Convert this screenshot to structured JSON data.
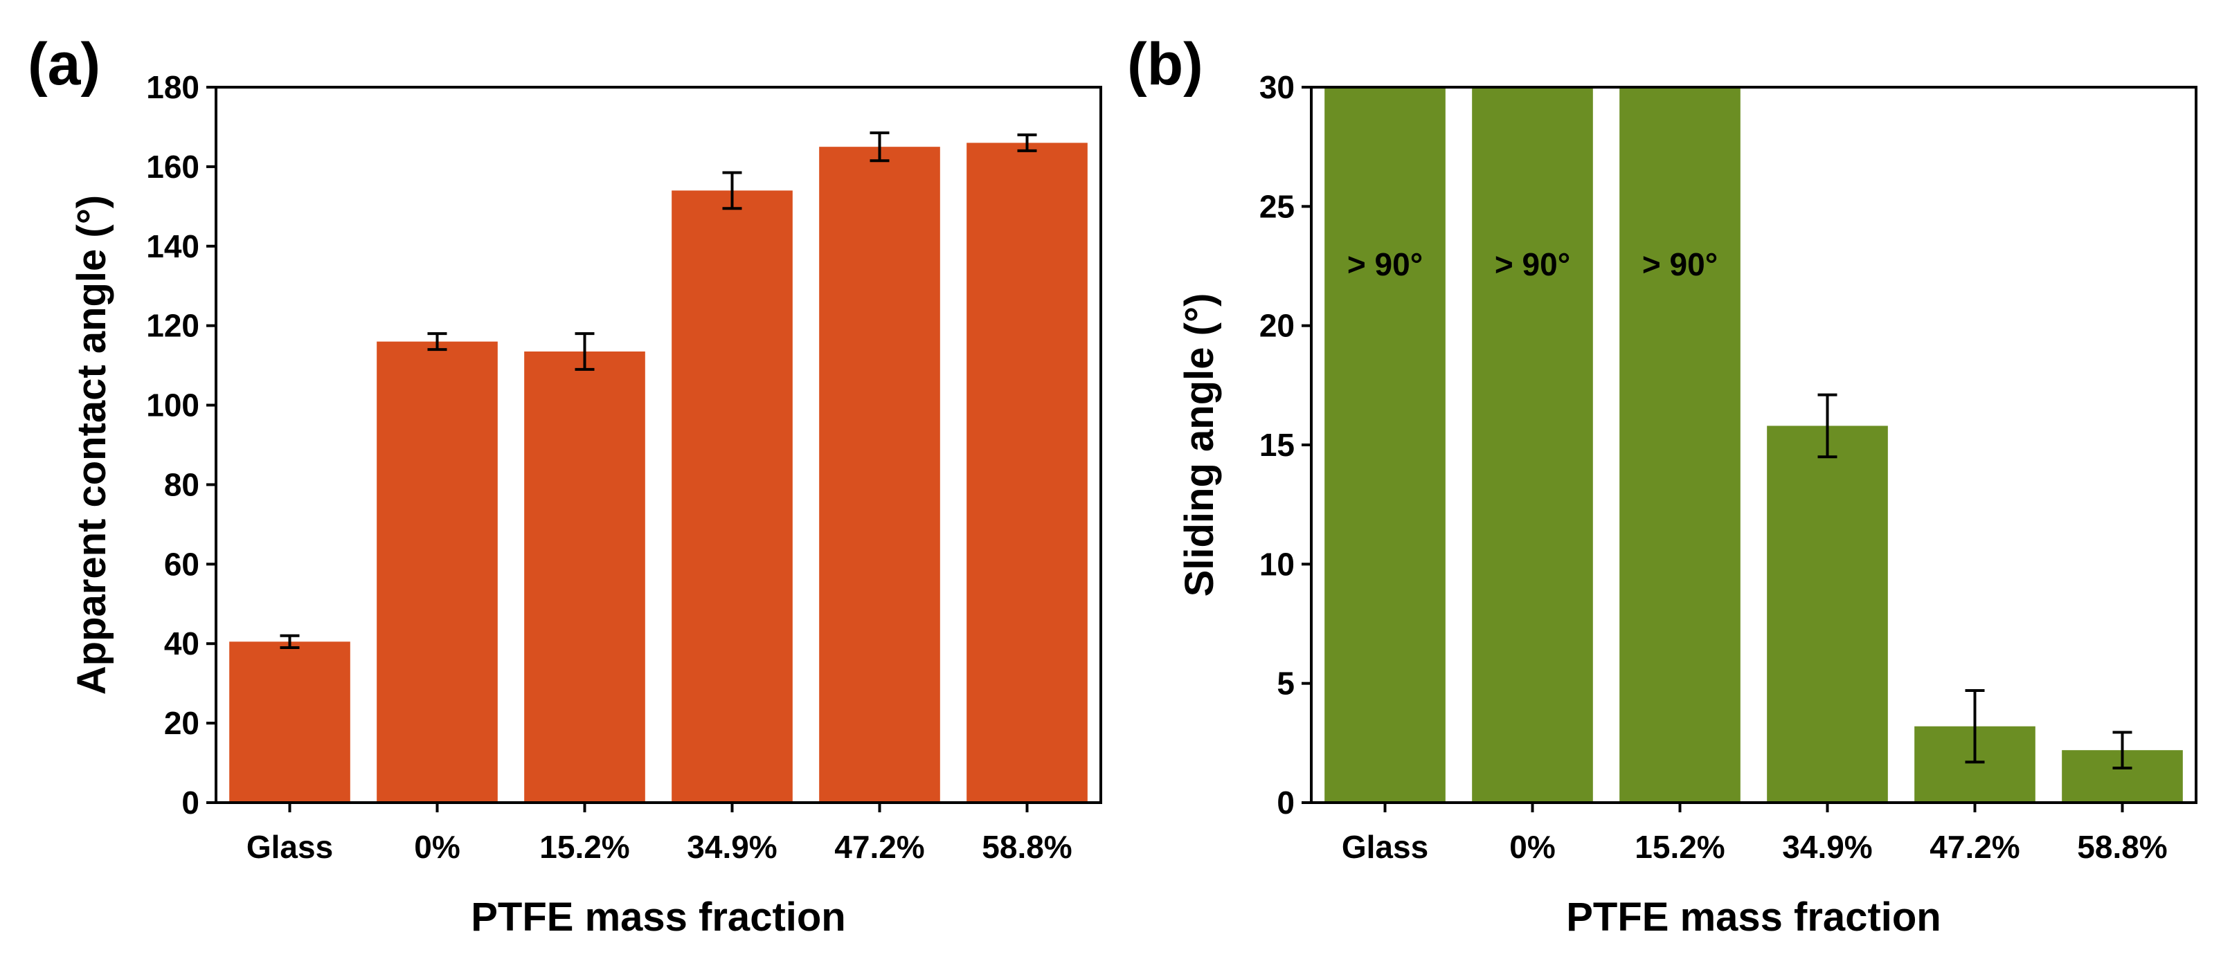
{
  "chart_data": [
    {
      "panel": "(a)",
      "type": "bar",
      "xlabel": "PTFE mass fraction",
      "ylabel": "Apparent contact angle (°)",
      "categories": [
        "Glass",
        "0%",
        "15.2%",
        "34.9%",
        "47.2%",
        "58.8%"
      ],
      "values": [
        40.5,
        116,
        113.5,
        154,
        165,
        166
      ],
      "errors": [
        1.5,
        2,
        4.5,
        4.5,
        3.5,
        2
      ],
      "ylim": [
        0,
        180
      ],
      "yticks": [
        0,
        20,
        40,
        60,
        80,
        100,
        120,
        140,
        160,
        180
      ],
      "color": "#d9501f"
    },
    {
      "panel": "(b)",
      "type": "bar",
      "xlabel": "PTFE mass fraction",
      "ylabel": "Sliding angle (°)",
      "categories": [
        "Glass",
        "0%",
        "15.2%",
        "34.9%",
        "47.2%",
        "58.8%"
      ],
      "values": [
        30,
        30,
        30,
        15.8,
        3.2,
        2.2
      ],
      "errors": [
        null,
        null,
        null,
        1.3,
        1.5,
        0.75
      ],
      "annotations": [
        "> 90°",
        "> 90°",
        "> 90°",
        "",
        "",
        ""
      ],
      "ylim": [
        0,
        30
      ],
      "yticks": [
        0,
        5,
        10,
        15,
        20,
        25,
        30
      ],
      "color": "#6b8e23"
    }
  ]
}
